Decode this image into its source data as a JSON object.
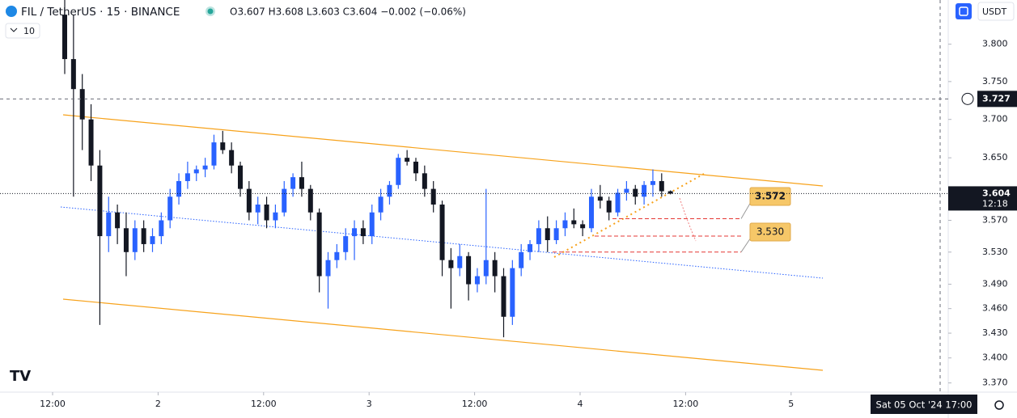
{
  "chart_data": {
    "type": "candlestick",
    "title": "FIL / TetherUS · 15 · BINANCE",
    "ohlc_legend": "O3.607 H3.608 L3.603 C3.604 −0.002 (−0.06%)",
    "indicator_label": "10",
    "currency": "USDT",
    "log_scale": true,
    "up_color": "#2962ff",
    "down_color": "#131722",
    "ylim": [
      3.36,
      3.86
    ],
    "yticks": [
      {
        "value": 3.37,
        "label": "3.370"
      },
      {
        "value": 3.4,
        "label": "3.400"
      },
      {
        "value": 3.43,
        "label": "3.430"
      },
      {
        "value": 3.46,
        "label": "3.460"
      },
      {
        "value": 3.49,
        "label": "3.490"
      },
      {
        "value": 3.53,
        "label": "3.530"
      },
      {
        "value": 3.57,
        "label": "3.570"
      },
      {
        "value": 3.65,
        "label": "3.650"
      },
      {
        "value": 3.7,
        "label": "3.700"
      },
      {
        "value": 3.75,
        "label": "3.750"
      },
      {
        "value": 3.8,
        "label": "3.800"
      }
    ],
    "xtick_labels": [
      "12:00",
      "2",
      "12:00",
      "3",
      "12:00",
      "4",
      "12:00",
      "5"
    ],
    "open": [
      3.84,
      3.78,
      3.74,
      3.7,
      3.64,
      3.55,
      3.58,
      3.56,
      3.53,
      3.56,
      3.54,
      3.55,
      3.57,
      3.6,
      3.62,
      3.63,
      3.635,
      3.64,
      3.67,
      3.66,
      3.64,
      3.61,
      3.58,
      3.59,
      3.57,
      3.58,
      3.61,
      3.625,
      3.61,
      3.58,
      3.5,
      3.52,
      3.53,
      3.55,
      3.56,
      3.55,
      3.58,
      3.6,
      3.615,
      3.65,
      3.645,
      3.63,
      3.61,
      3.59,
      3.52,
      3.51,
      3.525,
      3.49,
      3.5,
      3.52,
      3.5,
      3.45,
      3.51,
      3.53,
      3.54,
      3.56,
      3.545,
      3.56,
      3.57,
      3.565,
      3.56,
      3.6,
      3.595,
      3.58,
      3.605,
      3.61,
      3.6,
      3.615,
      3.62,
      3.607
    ],
    "high": [
      3.86,
      3.84,
      3.76,
      3.72,
      3.66,
      3.6,
      3.59,
      3.58,
      3.57,
      3.57,
      3.56,
      3.58,
      3.61,
      3.63,
      3.645,
      3.64,
      3.65,
      3.68,
      3.685,
      3.67,
      3.645,
      3.62,
      3.6,
      3.6,
      3.59,
      3.62,
      3.63,
      3.645,
      3.615,
      3.585,
      3.53,
      3.54,
      3.56,
      3.57,
      3.57,
      3.59,
      3.61,
      3.62,
      3.655,
      3.66,
      3.65,
      3.64,
      3.62,
      3.595,
      3.535,
      3.54,
      3.53,
      3.51,
      3.61,
      3.53,
      3.51,
      3.52,
      3.54,
      3.545,
      3.57,
      3.575,
      3.57,
      3.58,
      3.585,
      3.57,
      3.61,
      3.615,
      3.6,
      3.61,
      3.62,
      3.615,
      3.62,
      3.635,
      3.63,
      3.608
    ],
    "low": [
      3.76,
      3.6,
      3.66,
      3.62,
      3.44,
      3.53,
      3.54,
      3.5,
      3.52,
      3.53,
      3.53,
      3.54,
      3.56,
      3.59,
      3.61,
      3.62,
      3.625,
      3.635,
      3.655,
      3.63,
      3.6,
      3.57,
      3.565,
      3.56,
      3.56,
      3.575,
      3.6,
      3.6,
      3.57,
      3.48,
      3.46,
      3.51,
      3.52,
      3.52,
      3.54,
      3.54,
      3.57,
      3.59,
      3.61,
      3.64,
      3.62,
      3.6,
      3.58,
      3.5,
      3.46,
      3.5,
      3.47,
      3.48,
      3.49,
      3.48,
      3.425,
      3.44,
      3.5,
      3.52,
      3.53,
      3.53,
      3.54,
      3.55,
      3.56,
      3.55,
      3.555,
      3.585,
      3.57,
      3.575,
      3.595,
      3.59,
      3.59,
      3.6,
      3.6,
      3.603
    ],
    "close": [
      3.78,
      3.74,
      3.7,
      3.64,
      3.55,
      3.58,
      3.56,
      3.53,
      3.56,
      3.54,
      3.55,
      3.57,
      3.6,
      3.62,
      3.63,
      3.635,
      3.64,
      3.67,
      3.66,
      3.64,
      3.61,
      3.58,
      3.59,
      3.57,
      3.58,
      3.61,
      3.625,
      3.61,
      3.58,
      3.5,
      3.52,
      3.53,
      3.55,
      3.56,
      3.55,
      3.58,
      3.6,
      3.615,
      3.65,
      3.645,
      3.63,
      3.61,
      3.59,
      3.52,
      3.51,
      3.525,
      3.49,
      3.5,
      3.52,
      3.5,
      3.45,
      3.51,
      3.53,
      3.54,
      3.56,
      3.545,
      3.56,
      3.57,
      3.565,
      3.56,
      3.6,
      3.595,
      3.58,
      3.605,
      3.61,
      3.6,
      3.615,
      3.62,
      3.607,
      3.604
    ],
    "countdown": "12:18",
    "crosshair_price": 3.727,
    "crosshair_time": "Sat 05 Oct '24 17:00",
    "target_labels": [
      {
        "value": 3.572,
        "label": "3.572"
      },
      {
        "value": 3.53,
        "label": "3.530"
      }
    ]
  }
}
